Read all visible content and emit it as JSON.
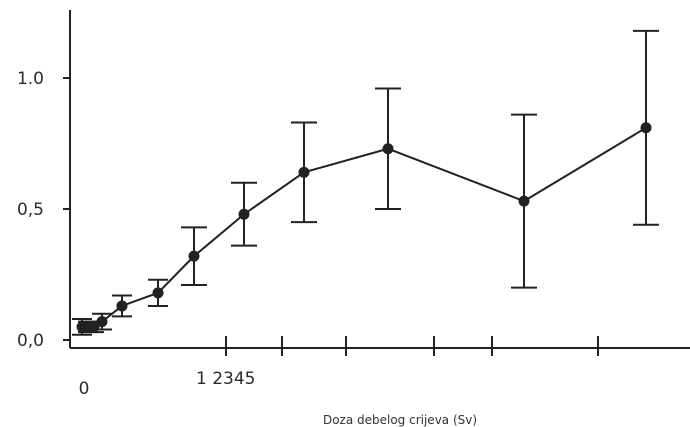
{
  "chart_data": {
    "type": "line",
    "xlabel": "Doza debelog crijeva (Sv)",
    "ylabel": "",
    "ylim": [
      0.0,
      1.25
    ],
    "y_ticks": [
      {
        "value": 0.0,
        "label": "0,0"
      },
      {
        "value": 0.5,
        "label": "0,5"
      },
      {
        "value": 1.0,
        "label": "1.0"
      }
    ],
    "x_tick_labels": [
      {
        "value": 0,
        "label": "0"
      },
      {
        "value": 1,
        "label": "1 2345"
      }
    ],
    "x_ticks": [
      0.72,
      1.0,
      1.32,
      1.76,
      2.05,
      2.58,
      3.06,
      3.58,
      4.02,
      4.61
    ],
    "grid": false,
    "series": [
      {
        "points": [
          {
            "x": 0.0,
            "y": 0.05,
            "err": 0.03
          },
          {
            "x": 0.03,
            "y": 0.05,
            "err": 0.02
          },
          {
            "x": 0.06,
            "y": 0.05,
            "err": 0.02
          },
          {
            "x": 0.1,
            "y": 0.07,
            "err": 0.03
          },
          {
            "x": 0.2,
            "y": 0.13,
            "err": 0.04
          },
          {
            "x": 0.38,
            "y": 0.18,
            "err": 0.05
          },
          {
            "x": 0.56,
            "y": 0.32,
            "err": 0.11
          },
          {
            "x": 0.81,
            "y": 0.48,
            "err": 0.12
          },
          {
            "x": 1.11,
            "y": 0.64,
            "err": 0.19
          },
          {
            "x": 1.53,
            "y": 0.73,
            "err": 0.23
          },
          {
            "x": 2.21,
            "y": 0.53,
            "err": 0.33
          },
          {
            "x": 2.82,
            "y": 0.81,
            "err": 0.37
          }
        ]
      }
    ]
  }
}
